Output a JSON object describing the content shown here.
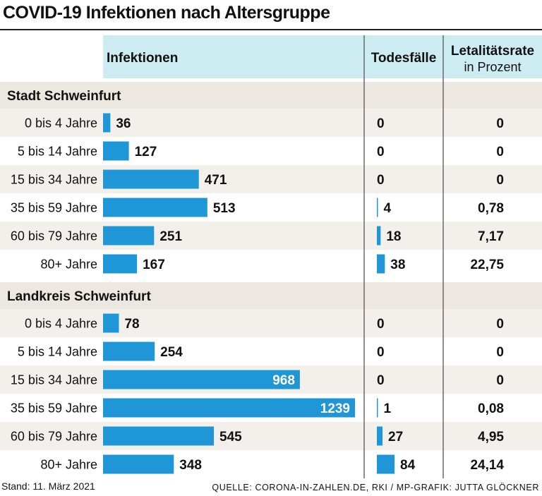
{
  "title": "COVID-19 Infektionen nach Altersgruppe",
  "colors": {
    "header_bg": "#cdecf2",
    "section_bg": "#ece7e1",
    "stripe_bg": "#f3f0ec",
    "bar": "#1f97d6",
    "divider": "#555555",
    "text": "#111111"
  },
  "headers": {
    "infektionen": "Infektionen",
    "todesfaelle": "Todesfälle",
    "rate_line1": "Letalitätsrate",
    "rate_line2": "in Prozent"
  },
  "footer": {
    "stand": "Stand: 11. März 2021",
    "quelle": "QUELLE: CORONA-IN-ZAHLEN.DE, RKI / MP-GRAFIK: JUTTA GLÖCKNER"
  },
  "chart_data": {
    "type": "bar",
    "orientation": "horizontal",
    "title": "COVID-19 Infektionen nach Altersgruppe",
    "columns": [
      "Infektionen",
      "Todesfälle",
      "Letalitätsrate in Prozent"
    ],
    "infections_max": 1239,
    "deaths_max": 84,
    "groups": [
      {
        "name": "Stadt Schweinfurt",
        "rows": [
          {
            "age": "0 bis 4 Jahre",
            "infections": 36,
            "infections_label": "36",
            "deaths": 0,
            "deaths_label": "0",
            "rate_label": "0"
          },
          {
            "age": "5 bis 14 Jahre",
            "infections": 127,
            "infections_label": "127",
            "deaths": 0,
            "deaths_label": "0",
            "rate_label": "0"
          },
          {
            "age": "15 bis 34 Jahre",
            "infections": 471,
            "infections_label": "471",
            "deaths": 0,
            "deaths_label": "0",
            "rate_label": "0"
          },
          {
            "age": "35 bis 59 Jahre",
            "infections": 513,
            "infections_label": "513",
            "deaths": 4,
            "deaths_label": "4",
            "rate_label": "0,78"
          },
          {
            "age": "60 bis 79 Jahre",
            "infections": 251,
            "infections_label": "251",
            "deaths": 18,
            "deaths_label": "18",
            "rate_label": "7,17"
          },
          {
            "age": "80+ Jahre",
            "infections": 167,
            "infections_label": "167",
            "deaths": 38,
            "deaths_label": "38",
            "rate_label": "22,75"
          }
        ]
      },
      {
        "name": "Landkreis Schweinfurt",
        "rows": [
          {
            "age": "0 bis 4 Jahre",
            "infections": 78,
            "infections_label": "78",
            "deaths": 0,
            "deaths_label": "0",
            "rate_label": "0"
          },
          {
            "age": "5 bis 14 Jahre",
            "infections": 254,
            "infections_label": "254",
            "deaths": 0,
            "deaths_label": "0",
            "rate_label": "0"
          },
          {
            "age": "15 bis 34 Jahre",
            "infections": 968,
            "infections_label": "968",
            "deaths": 0,
            "deaths_label": "0",
            "rate_label": "0"
          },
          {
            "age": "35 bis 59 Jahre",
            "infections": 1239,
            "infections_label": "1239",
            "deaths": 1,
            "deaths_label": "1",
            "rate_label": "0,08"
          },
          {
            "age": "60 bis 79 Jahre",
            "infections": 545,
            "infections_label": "545",
            "deaths": 27,
            "deaths_label": "27",
            "rate_label": "4,95"
          },
          {
            "age": "80+ Jahre",
            "infections": 348,
            "infections_label": "348",
            "deaths": 84,
            "deaths_label": "84",
            "rate_label": "24,14"
          }
        ]
      }
    ]
  }
}
